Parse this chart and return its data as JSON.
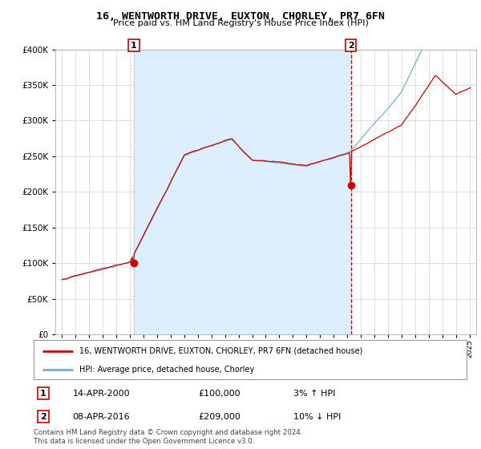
{
  "title": "16, WENTWORTH DRIVE, EUXTON, CHORLEY, PR7 6FN",
  "subtitle": "Price paid vs. HM Land Registry's House Price Index (HPI)",
  "legend_line1": "16, WENTWORTH DRIVE, EUXTON, CHORLEY, PR7 6FN (detached house)",
  "legend_line2": "HPI: Average price, detached house, Chorley",
  "annotation1_date": "14-APR-2000",
  "annotation1_price": "£100,000",
  "annotation1_hpi": "3% ↑ HPI",
  "annotation2_date": "08-APR-2016",
  "annotation2_price": "£209,000",
  "annotation2_hpi": "10% ↓ HPI",
  "footnote": "Contains HM Land Registry data © Crown copyright and database right 2024.\nThis data is licensed under the Open Government Licence v3.0.",
  "marker1_x": 2000.28,
  "marker1_y": 100000,
  "marker2_x": 2016.27,
  "marker2_y": 209000,
  "ylim": [
    0,
    400000
  ],
  "xlim_start": 1994.5,
  "xlim_end": 2025.5,
  "red_line_color": "#cc0000",
  "blue_line_color": "#7aabcd",
  "vline1_color": "#aaaaaa",
  "vline2_color": "#cc0000",
  "shade_color": "#ddeeff",
  "grid_color": "#dddddd",
  "background_color": "#ffffff",
  "yticks": [
    0,
    50000,
    100000,
    150000,
    200000,
    250000,
    300000,
    350000,
    400000
  ],
  "xtick_years": [
    1995,
    1996,
    1997,
    1998,
    1999,
    2000,
    2001,
    2002,
    2003,
    2004,
    2005,
    2006,
    2007,
    2008,
    2009,
    2010,
    2011,
    2012,
    2013,
    2014,
    2015,
    2016,
    2017,
    2018,
    2019,
    2020,
    2021,
    2022,
    2023,
    2024,
    2025
  ]
}
